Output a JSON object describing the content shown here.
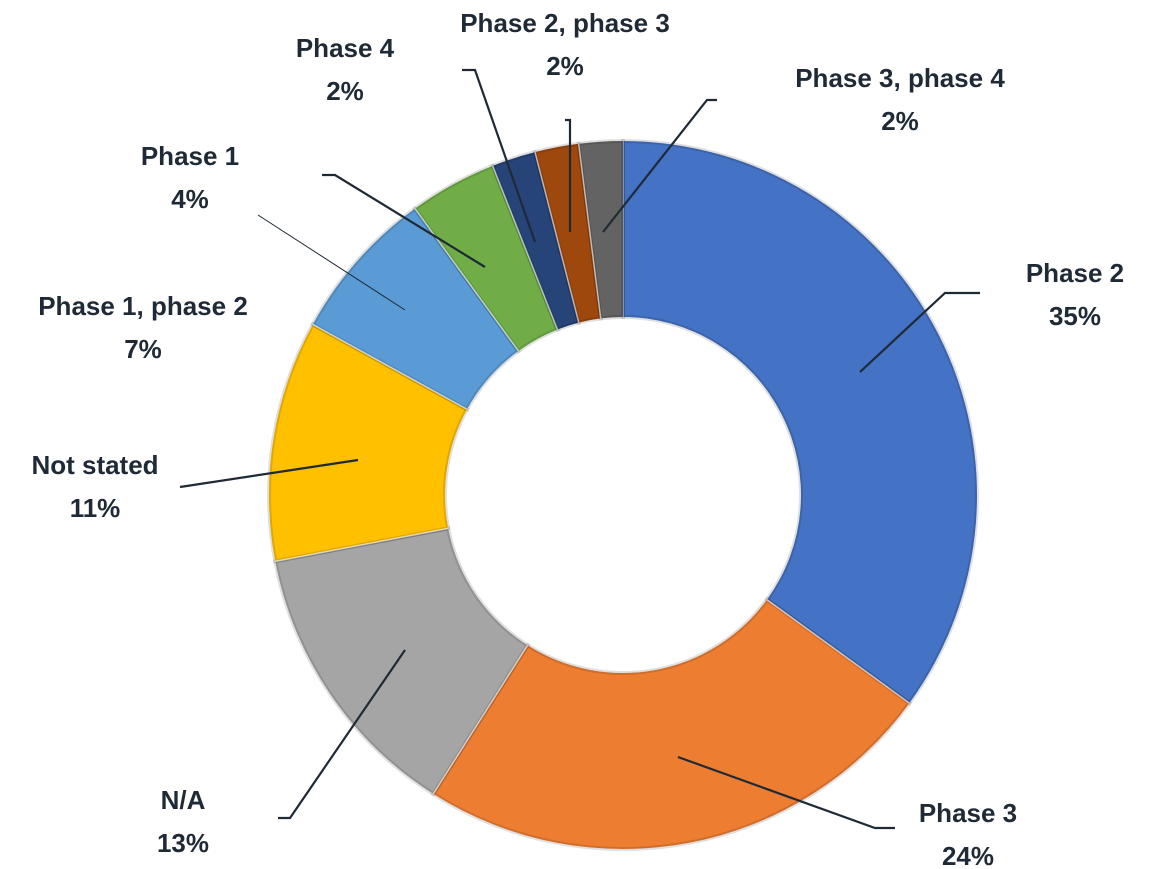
{
  "chart_data": {
    "type": "donut",
    "categories": [
      "Phase 2",
      "Phase 3",
      "N/A",
      "Not stated",
      "Phase 1, phase 2",
      "Phase 1",
      "Phase 4",
      "Phase 2, phase 3",
      "Phase 3, phase 4"
    ],
    "values": [
      35,
      24,
      13,
      11,
      7,
      4,
      2,
      2,
      2
    ],
    "value_labels": [
      "35%",
      "24%",
      "13%",
      "11%",
      "7%",
      "4%",
      "2%",
      "2%",
      "2%"
    ],
    "colors": [
      "#4472c4",
      "#ed7d31",
      "#a5a5a5",
      "#ffc000",
      "#5b9bd5",
      "#70ad47",
      "#264478",
      "#9e480e",
      "#636363"
    ]
  }
}
